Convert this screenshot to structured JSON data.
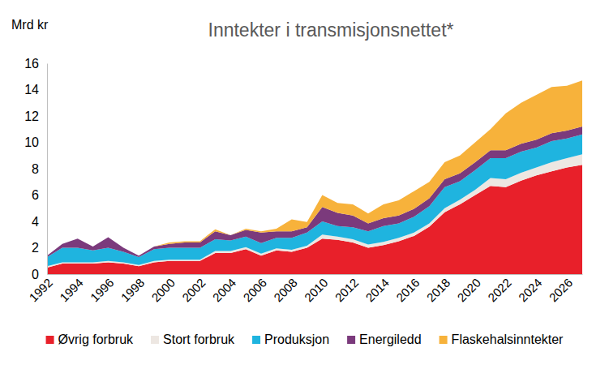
{
  "chart_data": {
    "type": "area",
    "title": "Inntekter i transmisjonsnettet*",
    "y_label": "Mrd kr",
    "stacked": true,
    "grid": false,
    "legend": "bottom",
    "x": [
      1992,
      1993,
      1994,
      1995,
      1996,
      1997,
      1998,
      1999,
      2000,
      2001,
      2002,
      2003,
      2004,
      2005,
      2006,
      2007,
      2008,
      2009,
      2010,
      2011,
      2012,
      2013,
      2014,
      2015,
      2016,
      2017,
      2018,
      2019,
      2020,
      2021,
      2022,
      2023,
      2024,
      2025,
      2026,
      2027
    ],
    "xlim": [
      1992,
      2027
    ],
    "xticks": [
      1992,
      1994,
      1996,
      1998,
      2000,
      2002,
      2004,
      2006,
      2008,
      2010,
      2012,
      2014,
      2016,
      2018,
      2020,
      2022,
      2024,
      2026
    ],
    "ylim": [
      0,
      16
    ],
    "yticks": [
      0,
      2,
      4,
      6,
      8,
      10,
      12,
      14,
      16
    ],
    "series": [
      {
        "name": "Øvrig forbruk",
        "color": "#e8202a",
        "values": [
          0.5,
          0.8,
          0.8,
          0.8,
          0.9,
          0.8,
          0.6,
          0.9,
          1.0,
          1.0,
          1.0,
          1.6,
          1.6,
          1.9,
          1.4,
          1.8,
          1.7,
          2.0,
          2.7,
          2.6,
          2.4,
          2.0,
          2.2,
          2.5,
          2.9,
          3.6,
          4.7,
          5.3,
          6.0,
          6.7,
          6.6,
          7.1,
          7.5,
          7.8,
          8.1,
          8.3
        ]
      },
      {
        "name": "Stort forbruk",
        "color": "#ede7e2",
        "values": [
          0.1,
          0.1,
          0.1,
          0.1,
          0.1,
          0.1,
          0.1,
          0.1,
          0.1,
          0.1,
          0.1,
          0.15,
          0.15,
          0.15,
          0.15,
          0.15,
          0.15,
          0.15,
          0.3,
          0.25,
          0.25,
          0.25,
          0.25,
          0.25,
          0.25,
          0.25,
          0.3,
          0.35,
          0.4,
          0.6,
          0.6,
          0.6,
          0.6,
          0.7,
          0.7,
          0.8
        ]
      },
      {
        "name": "Produksjon",
        "color": "#1fb4df",
        "values": [
          0.7,
          1.1,
          1.1,
          0.9,
          1.0,
          0.8,
          0.6,
          0.9,
          0.9,
          0.9,
          0.9,
          0.9,
          0.8,
          0.8,
          0.8,
          0.8,
          0.9,
          1.0,
          1.0,
          0.8,
          0.9,
          1.0,
          1.2,
          1.1,
          1.2,
          1.3,
          1.6,
          1.4,
          1.5,
          1.5,
          1.6,
          1.6,
          1.5,
          1.6,
          1.5,
          1.5
        ]
      },
      {
        "name": "Energiledd",
        "color": "#7b3a7c",
        "values": [
          0.1,
          0.3,
          0.7,
          0.3,
          0.8,
          0.3,
          0.1,
          0.2,
          0.3,
          0.4,
          0.4,
          0.6,
          0.4,
          0.5,
          0.8,
          0.5,
          0.5,
          0.4,
          1.1,
          1.0,
          0.9,
          0.6,
          0.6,
          0.6,
          0.6,
          0.6,
          0.6,
          0.6,
          0.6,
          0.6,
          0.6,
          0.6,
          0.6,
          0.6,
          0.6,
          0.6
        ]
      },
      {
        "name": "Flaskehalsinntekter",
        "color": "#f7b23b",
        "values": [
          0,
          0,
          0,
          0,
          0,
          0,
          0,
          0,
          0.1,
          0.1,
          0.1,
          0.15,
          0,
          0.1,
          0.1,
          0.2,
          0.9,
          0.4,
          0.9,
          0.75,
          0.85,
          0.75,
          1.05,
          1.15,
          1.35,
          1.25,
          1.3,
          1.35,
          1.5,
          1.6,
          2.8,
          3.1,
          3.4,
          3.5,
          3.4,
          3.5
        ]
      }
    ]
  }
}
